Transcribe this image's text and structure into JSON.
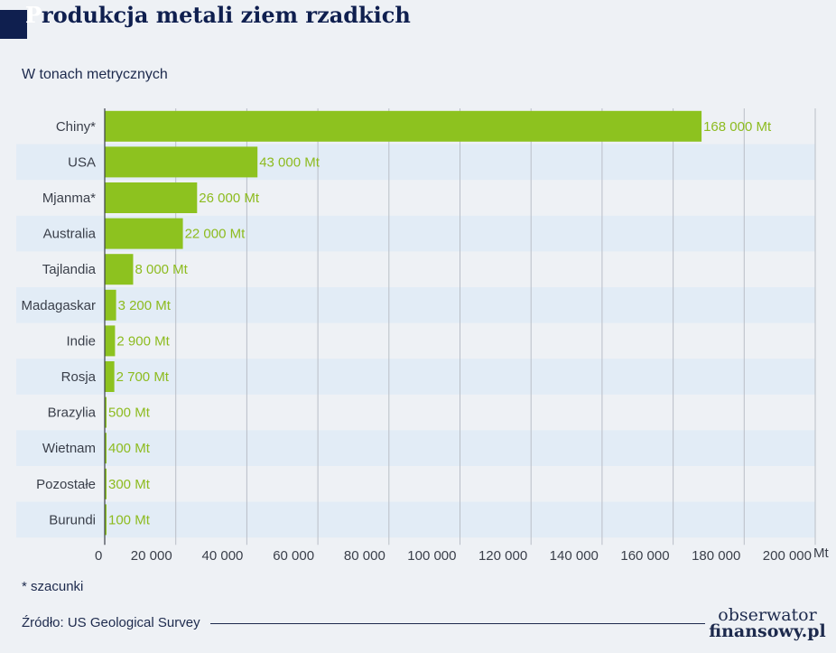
{
  "header": {
    "title": "Produkcja metali ziem rzadkich",
    "subtitle": "W tonach metrycznych"
  },
  "footer": {
    "footnote": "* szacunki",
    "source": "Źródło: US Geological Survey",
    "logo_line1": "obserwator",
    "logo_line2": "finansowy.pl"
  },
  "colors": {
    "bar": "#8dc21f",
    "label": "#8dbb1f",
    "band": "#e2ecf6",
    "axis": "#3a3f4a",
    "grid": "#b9bec7"
  },
  "chart_data": {
    "type": "bar",
    "orientation": "horizontal",
    "categories": [
      "Chiny*",
      "USA",
      "Mjanma*",
      "Australia",
      "Tajlandia",
      "Madagaskar",
      "Indie",
      "Rosja",
      "Brazylia",
      "Wietnam",
      "Pozostałe",
      "Burundi"
    ],
    "values": [
      168000,
      43000,
      26000,
      22000,
      8000,
      3200,
      2900,
      2700,
      500,
      400,
      300,
      100
    ],
    "value_labels": [
      "168 000 Mt",
      "43 000 Mt",
      "26 000 Mt",
      "22 000 Mt",
      "8 000 Mt",
      "3 200 Mt",
      "2 900 Mt",
      "2 700 Mt",
      "500 Mt",
      "400 Mt",
      "300 Mt",
      "100 Mt"
    ],
    "x_ticks": [
      0,
      20000,
      40000,
      60000,
      80000,
      100000,
      120000,
      140000,
      160000,
      180000,
      200000
    ],
    "x_tick_labels": [
      "0",
      "20 000",
      "40 000",
      "60 000",
      "80 000",
      "100 000",
      "120 000",
      "140 000",
      "160 000",
      "180 000",
      "200 000"
    ],
    "x_unit": "Mt",
    "xlim": [
      0,
      200000
    ],
    "grid": true
  }
}
